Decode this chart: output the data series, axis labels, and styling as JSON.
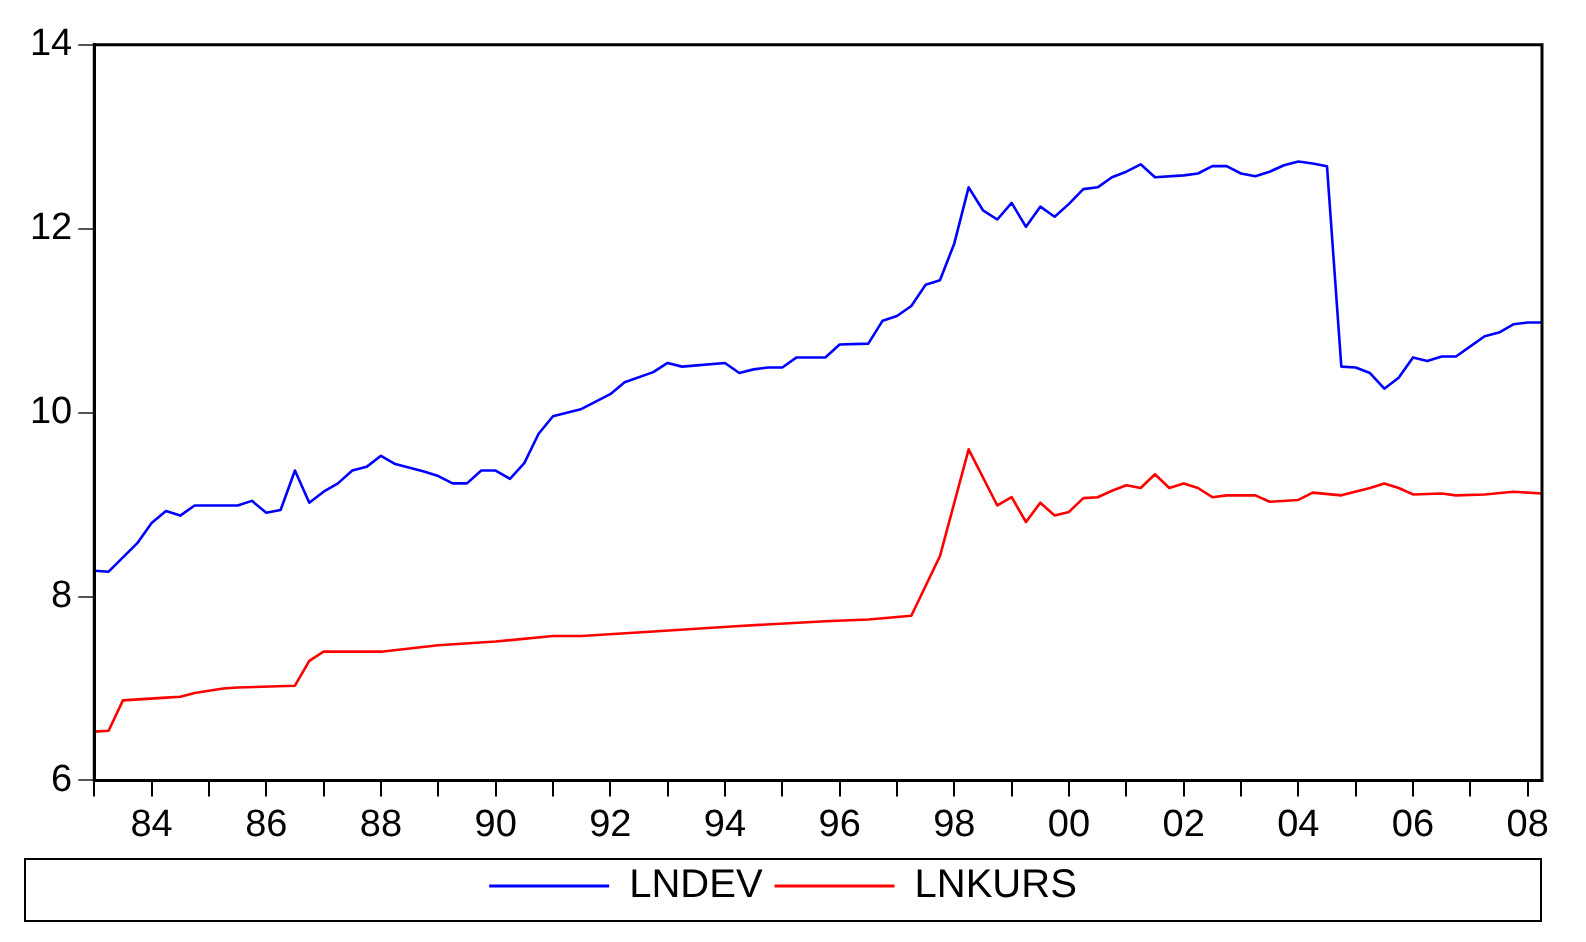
{
  "chart_data": {
    "type": "line",
    "xlim": [
      1983,
      2008.25
    ],
    "xticks": [
      {
        "value": 1983,
        "label": null
      },
      {
        "value": 1984,
        "label": "84"
      },
      {
        "value": 1985,
        "label": null
      },
      {
        "value": 1986,
        "label": "86"
      },
      {
        "value": 1987,
        "label": null
      },
      {
        "value": 1988,
        "label": "88"
      },
      {
        "value": 1989,
        "label": null
      },
      {
        "value": 1990,
        "label": "90"
      },
      {
        "value": 1991,
        "label": null
      },
      {
        "value": 1992,
        "label": "92"
      },
      {
        "value": 1993,
        "label": null
      },
      {
        "value": 1994,
        "label": "94"
      },
      {
        "value": 1995,
        "label": null
      },
      {
        "value": 1996,
        "label": "96"
      },
      {
        "value": 1997,
        "label": null
      },
      {
        "value": 1998,
        "label": "98"
      },
      {
        "value": 1999,
        "label": null
      },
      {
        "value": 2000,
        "label": "00"
      },
      {
        "value": 2001,
        "label": null
      },
      {
        "value": 2002,
        "label": "02"
      },
      {
        "value": 2003,
        "label": null
      },
      {
        "value": 2004,
        "label": "04"
      },
      {
        "value": 2005,
        "label": null
      },
      {
        "value": 2006,
        "label": "06"
      },
      {
        "value": 2007,
        "label": null
      },
      {
        "value": 2008,
        "label": "08"
      }
    ],
    "ylim": [
      6,
      14
    ],
    "yticks": [
      6,
      8,
      10,
      12,
      14
    ],
    "grid": false,
    "legend": "bottom",
    "marker": "none",
    "line_style": "solid",
    "series": [
      {
        "name": "LNDEV",
        "color": "#0000ff",
        "x": [
          1983,
          1983.25,
          1983.75,
          1984,
          1984.25,
          1984.5,
          1984.75,
          1985.5,
          1985.75,
          1986,
          1986.25,
          1986.5,
          1986.75,
          1987,
          1987.25,
          1987.5,
          1987.75,
          1988,
          1988.25,
          1988.75,
          1989,
          1989.25,
          1989.5,
          1989.75,
          1990,
          1990.25,
          1990.5,
          1990.75,
          1991,
          1991.5,
          1992,
          1992.25,
          1992.75,
          1993,
          1993.25,
          1994,
          1994.25,
          1994.5,
          1994.75,
          1995,
          1995.25,
          1995.75,
          1996,
          1996.5,
          1996.75,
          1997,
          1997.25,
          1997.5,
          1997.75,
          1998,
          1998.25,
          1998.5,
          1998.75,
          1999,
          1999.25,
          1999.5,
          1999.75,
          2000,
          2000.25,
          2000.5,
          2000.75,
          2001,
          2001.25,
          2001.5,
          2002,
          2002.25,
          2002.5,
          2002.75,
          2003,
          2003.25,
          2003.5,
          2003.75,
          2004,
          2004.25,
          2004.5,
          2004.75,
          2005,
          2005.25,
          2005.5,
          2005.75,
          2006,
          2006.25,
          2006.5,
          2006.75,
          2007,
          2007.25,
          2007.5,
          2007.75,
          2008,
          2008.25
        ],
        "values": [
          8.28,
          8.27,
          8.58,
          8.8,
          8.93,
          8.88,
          8.99,
          8.99,
          9.04,
          8.91,
          8.94,
          9.37,
          9.02,
          9.14,
          9.23,
          9.37,
          9.41,
          9.53,
          9.44,
          9.36,
          9.31,
          9.23,
          9.23,
          9.37,
          9.37,
          9.28,
          9.45,
          9.77,
          9.96,
          10.04,
          10.2,
          10.33,
          10.44,
          10.54,
          10.5,
          10.54,
          10.43,
          10.47,
          10.49,
          10.49,
          10.6,
          10.6,
          10.74,
          10.75,
          11.0,
          11.05,
          11.16,
          11.39,
          11.44,
          11.84,
          12.45,
          12.2,
          12.1,
          12.28,
          12.02,
          12.24,
          12.13,
          12.27,
          12.43,
          12.45,
          12.56,
          12.62,
          12.7,
          12.56,
          12.58,
          12.6,
          12.68,
          12.68,
          12.6,
          12.57,
          12.62,
          12.69,
          12.73,
          12.71,
          12.68,
          10.5,
          10.49,
          10.43,
          10.26,
          10.38,
          10.6,
          10.56,
          10.61,
          10.61,
          10.72,
          10.83,
          10.87,
          10.96,
          10.98,
          10.98
        ]
      },
      {
        "name": "LNKURS",
        "color": "#ff0000",
        "x": [
          1983,
          1983.25,
          1983.5,
          1984.25,
          1984.5,
          1984.75,
          1985.25,
          1985.5,
          1986.5,
          1986.75,
          1987,
          1988,
          1989,
          1990,
          1991,
          1991.5,
          1992.75,
          1994.25,
          1995.75,
          1996.5,
          1997.25,
          1997.75,
          1998.25,
          1998.75,
          1999,
          1999.25,
          1999.5,
          1999.75,
          2000,
          2000.25,
          2000.5,
          2000.75,
          2001,
          2001.25,
          2001.5,
          2001.75,
          2002,
          2002.25,
          2002.5,
          2002.75,
          2003.25,
          2003.5,
          2004,
          2004.25,
          2004.75,
          2005.25,
          2005.5,
          2005.75,
          2006,
          2006.5,
          2006.75,
          2007.25,
          2007.75,
          2008.25
        ],
        "values": [
          6.53,
          6.54,
          6.87,
          6.9,
          6.91,
          6.95,
          7.0,
          7.01,
          7.03,
          7.3,
          7.4,
          7.4,
          7.47,
          7.51,
          7.57,
          7.57,
          7.62,
          7.68,
          7.73,
          7.75,
          7.79,
          8.44,
          9.6,
          8.99,
          9.08,
          8.81,
          9.02,
          8.88,
          8.92,
          9.07,
          9.08,
          9.15,
          9.21,
          9.18,
          9.33,
          9.18,
          9.23,
          9.18,
          9.08,
          9.1,
          9.1,
          9.03,
          9.05,
          9.13,
          9.1,
          9.18,
          9.23,
          9.18,
          9.11,
          9.12,
          9.1,
          9.11,
          9.14,
          9.12
        ]
      }
    ]
  }
}
